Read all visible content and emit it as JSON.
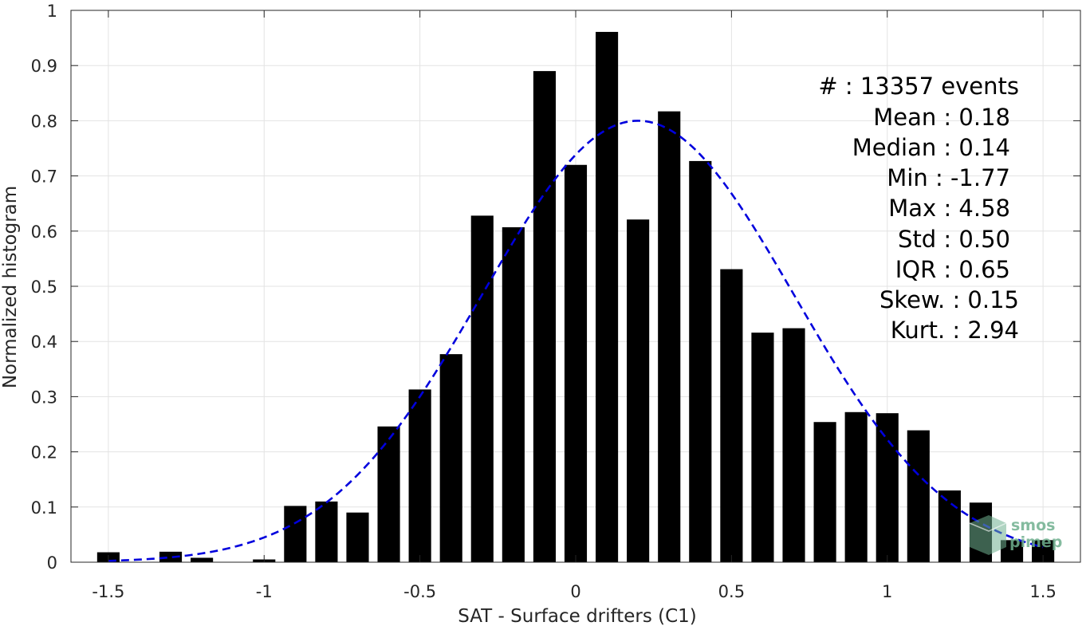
{
  "chart_data": {
    "type": "bar",
    "xlabel": "SAT - Surface drifters (C1)",
    "ylabel": "Normalized histogram",
    "xlim": [
      -1.62,
      1.62
    ],
    "ylim": [
      0,
      1
    ],
    "xticks": [
      -1.5,
      -1,
      -0.5,
      0,
      0.5,
      1,
      1.5
    ],
    "xtick_labels": [
      "-1.5",
      "-1",
      "-0.5",
      "0",
      "0.5",
      "1",
      "1.5"
    ],
    "yticks": [
      0,
      0.1,
      0.2,
      0.3,
      0.4,
      0.5,
      0.6,
      0.7,
      0.8,
      0.9,
      1
    ],
    "ytick_labels": [
      "0",
      "0.1",
      "0.2",
      "0.3",
      "0.4",
      "0.5",
      "0.6",
      "0.7",
      "0.8",
      "0.9",
      "1"
    ],
    "grid": true,
    "bar_color": "#000000",
    "curve_color": "#0000dd",
    "bin_width": 0.1,
    "bins": [
      -1.5,
      -1.3,
      -1.2,
      -1.0,
      -0.9,
      -0.8,
      -0.7,
      -0.6,
      -0.5,
      -0.4,
      -0.3,
      -0.2,
      -0.1,
      0.0,
      0.1,
      0.2,
      0.3,
      0.4,
      0.5,
      0.6,
      0.7,
      0.8,
      0.9,
      1.0,
      1.1,
      1.2,
      1.3,
      1.4,
      1.5
    ],
    "values": [
      0.018,
      0.019,
      0.008,
      0.005,
      0.102,
      0.11,
      0.09,
      0.246,
      0.313,
      0.377,
      0.628,
      0.607,
      0.89,
      0.72,
      0.961,
      0.621,
      0.817,
      0.727,
      0.531,
      0.416,
      0.424,
      0.254,
      0.272,
      0.27,
      0.239,
      0.13,
      0.108,
      0.04,
      0.04
    ],
    "series": [
      {
        "name": "",
        "type": "bar"
      },
      {
        "name": "",
        "type": "normal-fit",
        "mean": 0.2,
        "peak": 0.8,
        "std": 0.5,
        "x_from": -1.5,
        "x_to": 1.5,
        "style": "dashed"
      }
    ]
  },
  "stats": [
    "#  : 13357 events",
    "Mean : 0.18",
    "Median : 0.14",
    "Min : -1.77",
    "Max : 4.58",
    "Std : 0.50",
    "IQR : 0.65",
    "Skew. : 0.15",
    "Kurt. : 2.94"
  ],
  "logo": {
    "line1": "smos",
    "line2": "pimep",
    "color": "#6fb08f"
  }
}
